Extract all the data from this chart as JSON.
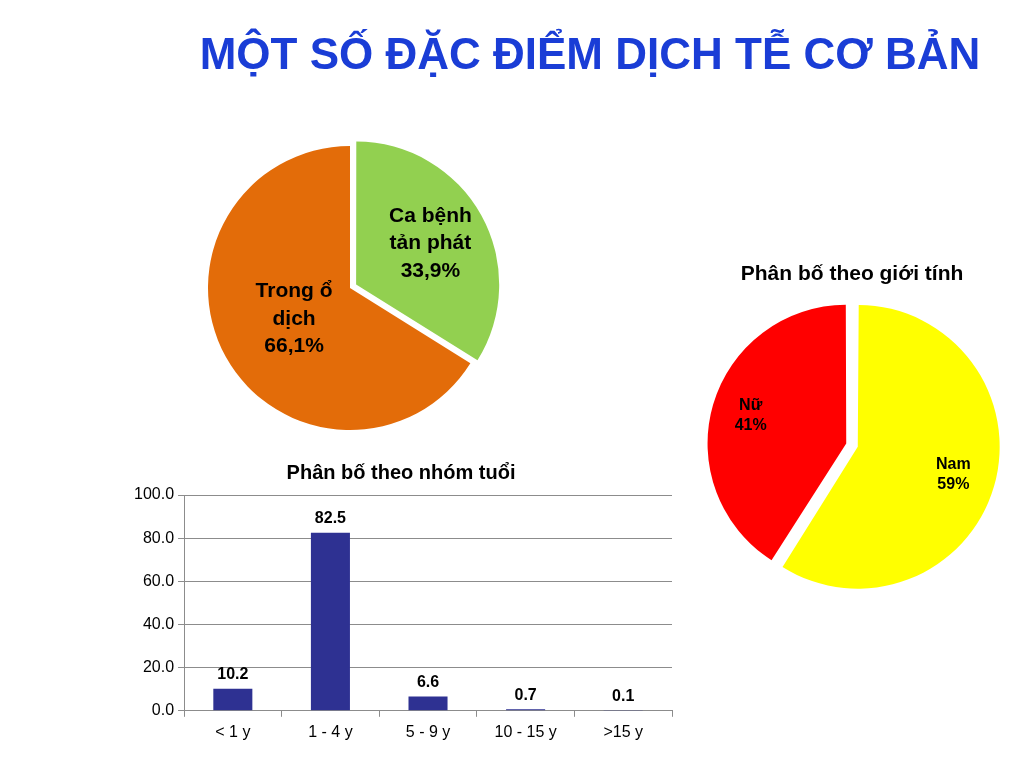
{
  "chart_data": [
    {
      "type": "pie",
      "title": "MỘT SỐ ĐẶC ĐIỂM DỊCH TỄ CƠ BẢN",
      "categories": [
        "Ca bệnh tản phát",
        "Trong ổ dịch"
      ],
      "values": [
        33.9,
        66.1
      ],
      "colors": [
        "#92d050",
        "#e36c09"
      ],
      "value_labels": [
        "33,9%",
        "66,1%"
      ]
    },
    {
      "type": "pie",
      "title": "Phân bố theo giới tính",
      "categories": [
        "Nam",
        "Nữ"
      ],
      "values": [
        59,
        41
      ],
      "colors": [
        "#ffff00",
        "#ff0000"
      ],
      "value_labels": [
        "59%",
        "41%"
      ]
    },
    {
      "type": "bar",
      "title": "Phân bố theo nhóm tuổi",
      "categories": [
        "< 1 y",
        "1 - 4 y",
        "5 - 9 y",
        "10 - 15 y",
        ">15 y"
      ],
      "values": [
        10.2,
        82.5,
        6.6,
        0.7,
        0.1
      ],
      "color": "#2e3192",
      "ylim": [
        0,
        100
      ],
      "yticks": [
        {
          "value": 0,
          "label": "0.0"
        },
        {
          "value": 20,
          "label": "20.0"
        },
        {
          "value": 40,
          "label": "40.0"
        },
        {
          "value": 60,
          "label": "60.0"
        },
        {
          "value": 80,
          "label": "80.0"
        },
        {
          "value": 100,
          "label": "100.0"
        }
      ],
      "grid": "y",
      "data_labels": true
    }
  ]
}
